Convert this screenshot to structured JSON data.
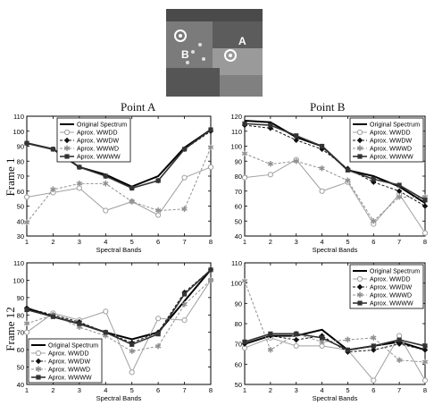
{
  "column_titles": [
    "Point A",
    "Point B"
  ],
  "row_titles": [
    "Frame 1",
    "Frame 12"
  ],
  "thumbnail": {
    "labels": [
      "B",
      "A"
    ]
  },
  "chart_data": [
    {
      "type": "line",
      "title": "",
      "xlabel": "Spectral Bands",
      "ylabel": "",
      "x": [
        1,
        2,
        3,
        4,
        5,
        6,
        7,
        8
      ],
      "ylim": [
        30,
        110
      ],
      "yticks": [
        30,
        40,
        50,
        60,
        70,
        80,
        90,
        100,
        110
      ],
      "legend": "top-left",
      "series": [
        {
          "name": "Original Spectrum",
          "values": [
            92,
            88,
            76,
            71,
            63,
            70,
            89,
            101
          ]
        },
        {
          "name": "Aprox. WWDD",
          "values": [
            56,
            59,
            62,
            47,
            53,
            44,
            69,
            76
          ]
        },
        {
          "name": "Aprox. WWDW",
          "values": [
            92,
            88,
            76,
            70,
            62,
            67,
            88,
            100
          ]
        },
        {
          "name": "Aprox. WWWD",
          "values": [
            39,
            61,
            65,
            65,
            53,
            47,
            48,
            89
          ]
        },
        {
          "name": "Aprox. WWWW",
          "values": [
            92,
            88,
            76,
            70,
            62,
            67,
            88,
            101
          ]
        }
      ]
    },
    {
      "type": "line",
      "title": "",
      "xlabel": "Spectral Bands",
      "ylabel": "",
      "x": [
        1,
        2,
        3,
        4,
        5,
        6,
        7,
        8
      ],
      "ylim": [
        40,
        120
      ],
      "yticks": [
        40,
        50,
        60,
        70,
        80,
        90,
        100,
        110,
        120
      ],
      "legend": "top-right",
      "series": [
        {
          "name": "Original Spectrum",
          "values": [
            117,
            116,
            106,
            100,
            84,
            80,
            73,
            62
          ]
        },
        {
          "name": "Aprox. WWDD",
          "values": [
            79,
            81,
            91,
            70,
            76,
            48,
            68,
            42
          ]
        },
        {
          "name": "Aprox. WWDW",
          "values": [
            114,
            112,
            104,
            98,
            85,
            76,
            70,
            60
          ]
        },
        {
          "name": "Aprox. WWWD",
          "values": [
            95,
            88,
            90,
            85,
            77,
            50,
            66,
            66
          ]
        },
        {
          "name": "Aprox. WWWW",
          "values": [
            115,
            114,
            107,
            100,
            84,
            78,
            74,
            64
          ]
        }
      ]
    },
    {
      "type": "line",
      "title": "",
      "xlabel": "Spectral Bands",
      "ylabel": "",
      "x": [
        1,
        2,
        3,
        4,
        5,
        6,
        7,
        8
      ],
      "ylim": [
        40,
        110
      ],
      "yticks": [
        40,
        50,
        60,
        70,
        80,
        90,
        100,
        110
      ],
      "legend": "bottom-left",
      "series": [
        {
          "name": "Original Spectrum",
          "values": [
            84,
            79,
            75,
            70,
            66,
            70,
            88,
            106
          ]
        },
        {
          "name": "Aprox. WWDD",
          "values": [
            70,
            81,
            77,
            82,
            47,
            78,
            77,
            100
          ]
        },
        {
          "name": "Aprox. WWDW",
          "values": [
            84,
            80,
            76,
            70,
            64,
            70,
            93,
            106
          ]
        },
        {
          "name": "Aprox. WWWD",
          "values": [
            75,
            80,
            73,
            68,
            59,
            62,
            86,
            100
          ]
        },
        {
          "name": "Aprox. WWWW",
          "values": [
            83,
            79,
            75,
            70,
            63,
            69,
            92,
            106
          ]
        }
      ]
    },
    {
      "type": "line",
      "title": "",
      "xlabel": "Spectral Bands",
      "ylabel": "",
      "x": [
        1,
        2,
        3,
        4,
        5,
        6,
        7,
        8
      ],
      "ylim": [
        50,
        110
      ],
      "yticks": [
        50,
        60,
        70,
        80,
        90,
        100,
        110
      ],
      "legend": "top-right",
      "series": [
        {
          "name": "Original Spectrum",
          "values": [
            70,
            74,
            74,
            77,
            67,
            69,
            71,
            67
          ]
        },
        {
          "name": "Aprox. WWDD",
          "values": [
            68,
            73,
            69,
            69,
            67,
            52,
            74,
            52
          ]
        },
        {
          "name": "Aprox. WWDW",
          "values": [
            70,
            74,
            72,
            74,
            66,
            67,
            70,
            67
          ]
        },
        {
          "name": "Aprox. WWWD",
          "values": [
            101,
            67,
            75,
            71,
            72,
            73,
            62,
            61
          ]
        },
        {
          "name": "Aprox. WWWW",
          "values": [
            71,
            75,
            75,
            73,
            67,
            69,
            72,
            69
          ]
        }
      ]
    }
  ]
}
